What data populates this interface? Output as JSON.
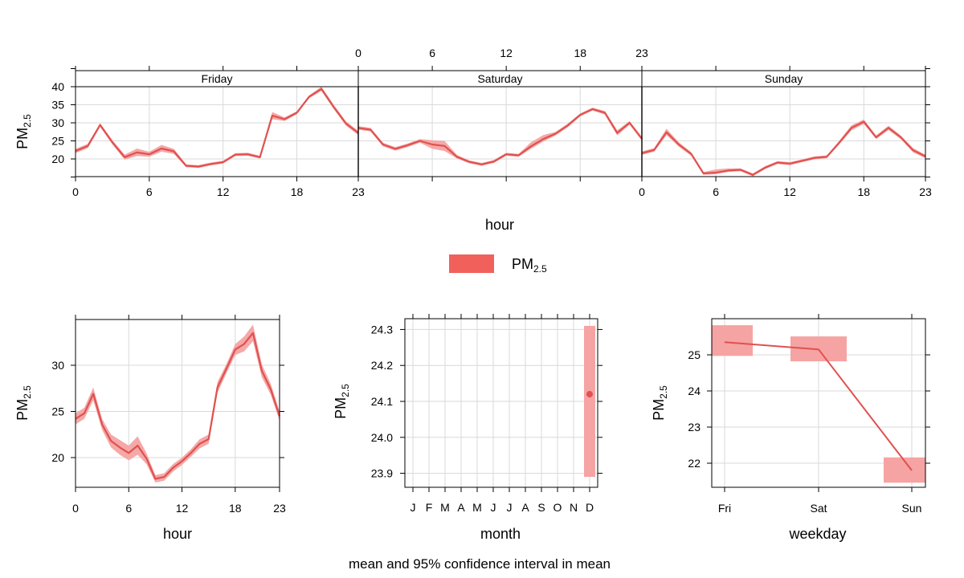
{
  "colors": {
    "line": "#e0514f",
    "band": "#f4a9a8",
    "band_strong": "#f6a3a3",
    "legend_fill": "#f2605b",
    "grid": "#d9d9d9",
    "strip_bg": "#ffffff"
  },
  "legend": {
    "label_main": "PM",
    "label_sub": "2.5"
  },
  "caption": "mean and 95% confidence interval in mean",
  "chart_data": [
    {
      "id": "hour-weekday",
      "type": "line",
      "panels": [
        "Friday",
        "Saturday",
        "Sunday"
      ],
      "xlabel": "hour",
      "ylabel_main": "PM",
      "ylabel_sub": "2.5",
      "x_ticks": [
        0,
        6,
        12,
        18,
        23
      ],
      "x_tick_labels": [
        "0",
        "6",
        "12",
        "18",
        "23"
      ],
      "xlim": [
        0,
        23
      ],
      "y_ticks": [
        20,
        25,
        30,
        35,
        40
      ],
      "y_tick_labels": [
        "20",
        "25",
        "30",
        "35",
        "40"
      ],
      "ylim": [
        14.5,
        45
      ],
      "x": [
        0,
        1,
        2,
        3,
        4,
        5,
        6,
        7,
        8,
        9,
        10,
        11,
        12,
        13,
        14,
        15,
        16,
        17,
        18,
        19,
        20,
        21,
        22,
        23
      ],
      "series": [
        {
          "panel": "Friday",
          "mean": [
            22.2,
            23.6,
            29.4,
            24.6,
            20.5,
            21.8,
            21.3,
            22.9,
            22.1,
            18.1,
            17.9,
            18.6,
            19.1,
            21.2,
            21.3,
            20.5,
            32.0,
            31.0,
            32.8,
            37.2,
            39.4,
            34.4,
            29.8,
            27.2
          ],
          "lower": [
            21.6,
            23.0,
            28.9,
            24.0,
            19.8,
            20.8,
            20.6,
            22.0,
            21.4,
            17.7,
            17.5,
            18.2,
            18.7,
            20.8,
            20.9,
            20.1,
            31.0,
            30.5,
            32.4,
            36.8,
            38.8,
            33.8,
            29.2,
            26.6
          ],
          "upper": [
            22.8,
            24.2,
            29.9,
            25.2,
            21.2,
            22.9,
            22.0,
            23.9,
            22.8,
            18.5,
            18.3,
            19.0,
            19.5,
            21.6,
            21.7,
            20.9,
            33.0,
            31.5,
            33.2,
            37.6,
            40.0,
            35.0,
            30.4,
            27.8
          ]
        },
        {
          "panel": "Saturday",
          "mean": [
            28.6,
            28.1,
            24.0,
            22.8,
            23.8,
            25.0,
            24.0,
            23.6,
            20.6,
            19.2,
            18.5,
            19.3,
            21.3,
            21.0,
            23.5,
            25.5,
            27.0,
            29.3,
            32.2,
            33.8,
            32.8,
            27.2,
            30.0,
            25.6
          ],
          "lower": [
            28.1,
            27.6,
            23.5,
            22.3,
            23.3,
            24.5,
            22.8,
            22.2,
            20.1,
            18.8,
            18.1,
            18.9,
            20.9,
            20.6,
            22.8,
            24.8,
            26.5,
            28.8,
            31.8,
            33.4,
            32.3,
            26.5,
            29.5,
            25.1
          ],
          "upper": [
            29.1,
            28.6,
            24.5,
            23.3,
            24.3,
            25.5,
            25.2,
            25.0,
            21.1,
            19.6,
            18.9,
            19.7,
            21.7,
            21.4,
            24.6,
            26.6,
            27.5,
            29.8,
            32.6,
            34.2,
            33.3,
            27.9,
            30.5,
            26.1
          ]
        },
        {
          "panel": "Sunday",
          "mean": [
            21.6,
            22.5,
            27.4,
            24.0,
            21.4,
            16.0,
            16.2,
            16.8,
            17.0,
            15.6,
            17.6,
            19.0,
            18.7,
            19.5,
            20.3,
            20.6,
            24.5,
            28.6,
            30.3,
            26.0,
            28.6,
            26.0,
            22.4,
            20.7
          ],
          "lower": [
            21.1,
            22.0,
            26.6,
            23.4,
            20.9,
            15.6,
            15.8,
            16.4,
            16.6,
            15.2,
            17.2,
            18.6,
            18.3,
            19.1,
            19.9,
            20.2,
            24.0,
            27.9,
            29.7,
            25.5,
            28.0,
            25.5,
            21.8,
            20.2
          ],
          "upper": [
            22.1,
            23.0,
            28.4,
            24.6,
            21.9,
            16.4,
            17.1,
            17.4,
            17.4,
            16.0,
            18.0,
            19.4,
            19.1,
            19.9,
            20.7,
            21.0,
            25.0,
            29.3,
            30.9,
            26.5,
            29.2,
            26.5,
            23.0,
            21.2
          ]
        }
      ]
    },
    {
      "id": "hour",
      "type": "line",
      "xlabel": "hour",
      "ylabel_main": "PM",
      "ylabel_sub": "2.5",
      "x_ticks": [
        0,
        6,
        12,
        18,
        23
      ],
      "x_tick_labels": [
        "0",
        "6",
        "12",
        "18",
        "23"
      ],
      "xlim": [
        0,
        23
      ],
      "y_ticks": [
        20,
        25,
        30
      ],
      "y_tick_labels": [
        "20",
        "25",
        "30"
      ],
      "ylim": [
        16.7,
        35.1
      ],
      "x": [
        0,
        1,
        2,
        3,
        4,
        5,
        6,
        7,
        8,
        9,
        10,
        11,
        12,
        13,
        14,
        15,
        16,
        17,
        18,
        19,
        20,
        21,
        22,
        23
      ],
      "mean": [
        24.2,
        24.8,
        26.9,
        23.6,
        21.8,
        21.1,
        20.5,
        21.3,
        19.9,
        17.7,
        17.9,
        18.9,
        19.6,
        20.5,
        21.5,
        22.0,
        27.6,
        29.6,
        31.7,
        32.3,
        33.5,
        29.4,
        27.4,
        24.5
      ],
      "lower": [
        23.6,
        24.2,
        26.2,
        23.0,
        21.1,
        20.3,
        19.7,
        20.3,
        19.3,
        17.3,
        17.5,
        18.5,
        19.2,
        20.1,
        21.0,
        21.5,
        27.0,
        29.1,
        31.1,
        31.5,
        32.6,
        28.7,
        26.8,
        24.0
      ],
      "upper": [
        24.8,
        25.4,
        27.6,
        24.2,
        22.5,
        21.9,
        21.3,
        22.3,
        20.5,
        18.1,
        18.3,
        19.3,
        20.0,
        20.9,
        22.0,
        22.5,
        28.2,
        30.1,
        32.3,
        33.1,
        34.4,
        30.1,
        28.0,
        25.0
      ]
    },
    {
      "id": "month",
      "type": "scatter",
      "xlabel": "month",
      "ylabel_main": "PM",
      "ylabel_sub": "2.5",
      "categories": [
        "J",
        "F",
        "M",
        "A",
        "M",
        "J",
        "J",
        "A",
        "S",
        "O",
        "N",
        "D"
      ],
      "y_ticks": [
        23.9,
        24.0,
        24.1,
        24.2,
        24.3
      ],
      "y_tick_labels": [
        "23.9",
        "24.0",
        "24.1",
        "24.2",
        "24.3"
      ],
      "ylim": [
        23.87,
        24.33
      ],
      "points": [
        {
          "category_index": 11,
          "mean": 24.12,
          "lower": 23.89,
          "upper": 24.31
        }
      ]
    },
    {
      "id": "weekday",
      "type": "line",
      "xlabel": "weekday",
      "ylabel_main": "PM",
      "ylabel_sub": "2.5",
      "categories": [
        "Fri",
        "Sat",
        "Sun"
      ],
      "y_ticks": [
        22,
        23,
        24,
        25
      ],
      "y_tick_labels": [
        "22",
        "23",
        "24",
        "25"
      ],
      "ylim": [
        21.3,
        26.0
      ],
      "mean": [
        25.35,
        25.15,
        21.8
      ],
      "lower": [
        24.97,
        24.82,
        21.46
      ],
      "upper": [
        25.82,
        25.51,
        22.16
      ]
    }
  ]
}
